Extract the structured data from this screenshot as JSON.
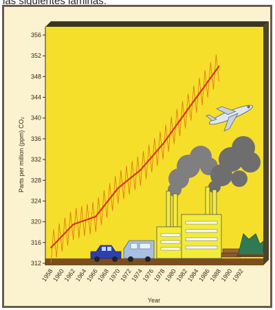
{
  "header": {
    "text": "las siguientes láminas:"
  },
  "chart_data": {
    "type": "line",
    "ylabel": "Parts per million (ppm) CO₂",
    "xlabel": "Year",
    "ylim": [
      312,
      356
    ],
    "xlim": [
      1958,
      1992
    ],
    "y_ticks": [
      "356",
      "352",
      "348",
      "344",
      "340",
      "336",
      "332",
      "328",
      "324",
      "320",
      "316",
      "312"
    ],
    "x_ticks": [
      "1958",
      "1960",
      "1962",
      "1964",
      "1966",
      "1968",
      "1970",
      "1972",
      "1974",
      "1976",
      "1978",
      "1980",
      "1982",
      "1984",
      "1986",
      "1988",
      "1990",
      "1992"
    ],
    "series": [
      {
        "type": "line",
        "x": [
          1958,
          1962,
          1966,
          1970,
          1974,
          1978,
          1982,
          1986,
          1988
        ],
        "values": [
          315,
          319.5,
          321,
          326.5,
          330,
          335,
          341,
          347,
          350
        ]
      },
      {
        "type": "seasonal-oscillation",
        "amplitude": 3
      }
    ],
    "colors": {
      "trend": "#d9301c",
      "seasonal": "#e07a16",
      "plot_bg": "#f6df2a",
      "panel": "#5e5a39",
      "ground": "#7a4e1f"
    }
  }
}
